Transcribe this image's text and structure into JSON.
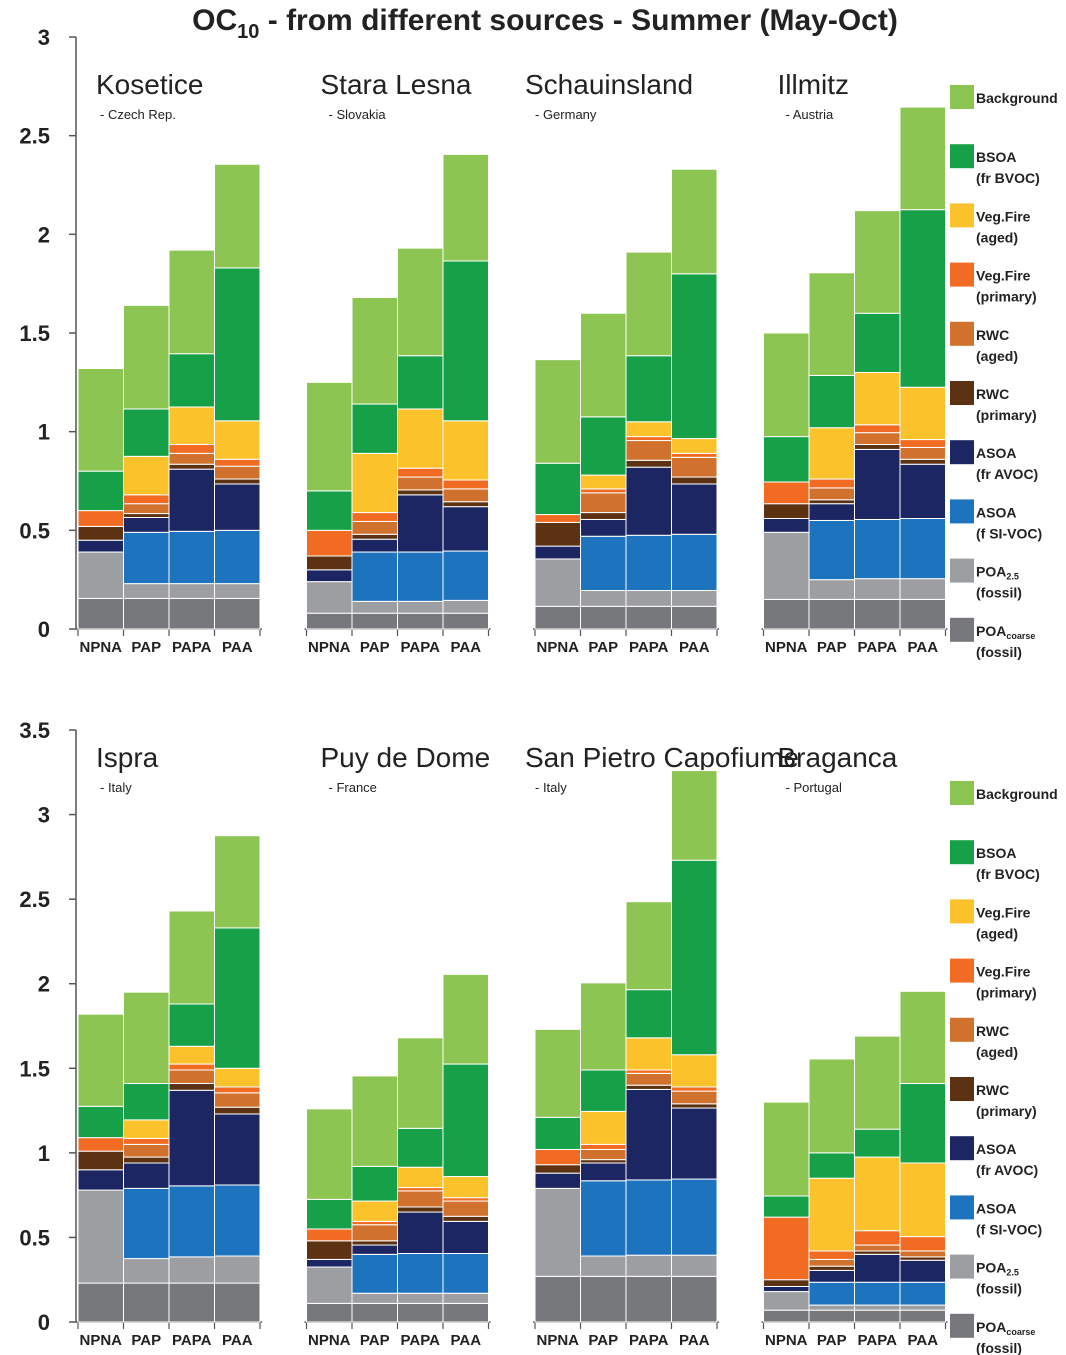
{
  "chart_data": [
    {
      "type": "stacked_bar",
      "title": "OC",
      "title_sub": "10",
      "title_rest": " - from different sources - Summer (May-Oct)",
      "groups": [
        {
          "name": "Kosetice",
          "note": "- Czech Rep."
        },
        {
          "name": "Stara Lesna",
          "note": "- Slovakia"
        },
        {
          "name": "Schauinsland",
          "note": "- Germany"
        },
        {
          "name": "Illmitz",
          "note": "- Austria"
        }
      ],
      "categories": [
        "NPNA",
        "PAP",
        "PAPA",
        "PAA"
      ],
      "ylim": [
        0,
        3
      ],
      "yticks": [
        0,
        0.5,
        1,
        1.5,
        2,
        2.5,
        3
      ],
      "series": [
        {
          "name": "Background",
          "color": "#8cc552",
          "values": [
            [
              0.52,
              0.525,
              0.525,
              0.525
            ],
            [
              0.55,
              0.54,
              0.545,
              0.54
            ],
            [
              0.525,
              0.525,
              0.525,
              0.53
            ],
            [
              0.525,
              0.52,
              0.52,
              0.52
            ]
          ]
        },
        {
          "name": "BSOA",
          "note": "(fr BVOC)",
          "color": "#16a047",
          "values": [
            [
              0.2,
              0.24,
              0.27,
              0.775
            ],
            [
              0.2,
              0.25,
              0.27,
              0.81
            ],
            [
              0.26,
              0.295,
              0.335,
              0.835
            ],
            [
              0.23,
              0.265,
              0.3,
              0.9
            ]
          ]
        },
        {
          "name": "Veg.Fire",
          "note": "(aged)",
          "color": "#fcc22c",
          "values": [
            [
              0,
              0.195,
              0.19,
              0.195
            ],
            [
              0,
              0.3,
              0.3,
              0.3
            ],
            [
              0,
              0.07,
              0.075,
              0.075
            ],
            [
              0,
              0.26,
              0.265,
              0.265
            ]
          ]
        },
        {
          "name": "Veg.Fire",
          "note": "(primary)",
          "color": "#f26b22",
          "values": [
            [
              0.08,
              0.045,
              0.045,
              0.035
            ],
            [
              0.13,
              0.045,
              0.045,
              0.045
            ],
            [
              0.04,
              0.02,
              0.02,
              0.02
            ],
            [
              0.11,
              0.045,
              0.04,
              0.04
            ]
          ]
        },
        {
          "name": "RWC",
          "note": "(aged)",
          "color": "#d0712e",
          "values": [
            [
              0,
              0.05,
              0.055,
              0.065
            ],
            [
              0,
              0.065,
              0.065,
              0.065
            ],
            [
              0,
              0.1,
              0.1,
              0.1
            ],
            [
              0,
              0.06,
              0.06,
              0.06
            ]
          ]
        },
        {
          "name": "RWC",
          "note": "(primary)",
          "color": "#5c3213",
          "values": [
            [
              0.07,
              0.02,
              0.025,
              0.025
            ],
            [
              0.07,
              0.025,
              0.025,
              0.025
            ],
            [
              0.12,
              0.035,
              0.035,
              0.035
            ],
            [
              0.075,
              0.02,
              0.025,
              0.025
            ]
          ]
        },
        {
          "name": "ASOA",
          "note": "(fr AVOC)",
          "color": "#1c2662",
          "values": [
            [
              0.06,
              0.075,
              0.315,
              0.235
            ],
            [
              0.06,
              0.065,
              0.29,
              0.225
            ],
            [
              0.065,
              0.085,
              0.345,
              0.255
            ],
            [
              0.07,
              0.085,
              0.355,
              0.275
            ]
          ]
        },
        {
          "name": "ASOA",
          "note": "(f SI-VOC)",
          "color": "#1e73be",
          "values": [
            [
              0,
              0.26,
              0.265,
              0.27
            ],
            [
              0,
              0.25,
              0.25,
              0.25
            ],
            [
              0,
              0.275,
              0.28,
              0.285
            ],
            [
              0,
              0.3,
              0.3,
              0.305
            ]
          ]
        },
        {
          "name": "POA",
          "sub": "2.5",
          "note": "(fossil)",
          "color": "#9d9ea2",
          "values": [
            [
              0.235,
              0.075,
              0.075,
              0.075
            ],
            [
              0.16,
              0.06,
              0.06,
              0.065
            ],
            [
              0.24,
              0.08,
              0.08,
              0.08
            ],
            [
              0.34,
              0.1,
              0.105,
              0.105
            ]
          ]
        },
        {
          "name": "POA",
          "sub": "coarse",
          "note": "(fossil)",
          "color": "#77787b",
          "values": [
            [
              0.155,
              0.155,
              0.155,
              0.155
            ],
            [
              0.08,
              0.08,
              0.08,
              0.08
            ],
            [
              0.115,
              0.115,
              0.115,
              0.115
            ],
            [
              0.15,
              0.15,
              0.15,
              0.15
            ]
          ]
        }
      ]
    },
    {
      "type": "stacked_bar",
      "groups": [
        {
          "name": "Ispra",
          "note": "- Italy"
        },
        {
          "name": "Puy de Dome",
          "note": "- France"
        },
        {
          "name": "San Pietro Capofiume",
          "note": "- Italy"
        },
        {
          "name": "Braganca",
          "note": "- Portugal"
        }
      ],
      "categories": [
        "NPNA",
        "PAP",
        "PAPA",
        "PAA"
      ],
      "ylim": [
        0,
        3.5
      ],
      "yticks": [
        0,
        0.5,
        1,
        1.5,
        2,
        2.5,
        3,
        3.5
      ],
      "series": [
        {
          "name": "Background",
          "color": "#8cc552",
          "values": [
            [
              0.545,
              0.54,
              0.55,
              0.545
            ],
            [
              0.535,
              0.535,
              0.535,
              0.53
            ],
            [
              0.52,
              0.515,
              0.52,
              0.53
            ],
            [
              0.555,
              0.555,
              0.55,
              0.545
            ]
          ]
        },
        {
          "name": "BSOA",
          "note": "(fr BVOC)",
          "color": "#16a047",
          "values": [
            [
              0.185,
              0.215,
              0.25,
              0.83
            ],
            [
              0.175,
              0.205,
              0.23,
              0.665
            ],
            [
              0.19,
              0.245,
              0.285,
              1.15
            ],
            [
              0.125,
              0.15,
              0.165,
              0.47
            ]
          ]
        },
        {
          "name": "Veg.Fire",
          "note": "(aged)",
          "color": "#fcc22c",
          "values": [
            [
              0,
              0.11,
              0.105,
              0.11
            ],
            [
              0,
              0.12,
              0.12,
              0.125
            ],
            [
              0,
              0.195,
              0.19,
              0.19
            ],
            [
              0,
              0.43,
              0.435,
              0.435
            ]
          ]
        },
        {
          "name": "Veg.Fire",
          "note": "(primary)",
          "color": "#f26b22",
          "values": [
            [
              0.08,
              0.035,
              0.035,
              0.035
            ],
            [
              0.07,
              0.02,
              0.02,
              0.02
            ],
            [
              0.09,
              0.03,
              0.02,
              0.025
            ],
            [
              0.37,
              0.05,
              0.085,
              0.085
            ]
          ]
        },
        {
          "name": "RWC",
          "note": "(aged)",
          "color": "#d0712e",
          "values": [
            [
              0,
              0.075,
              0.08,
              0.085
            ],
            [
              0,
              0.095,
              0.095,
              0.09
            ],
            [
              0,
              0.06,
              0.07,
              0.075
            ],
            [
              0,
              0.04,
              0.035,
              0.035
            ]
          ]
        },
        {
          "name": "RWC",
          "note": "(primary)",
          "color": "#5c3213",
          "values": [
            [
              0.11,
              0.035,
              0.04,
              0.04
            ],
            [
              0.11,
              0.025,
              0.03,
              0.03
            ],
            [
              0.05,
              0.02,
              0.025,
              0.025
            ],
            [
              0.04,
              0.025,
              0.02,
              0.02
            ]
          ]
        },
        {
          "name": "ASOA",
          "note": "(fr AVOC)",
          "color": "#1c2662",
          "values": [
            [
              0.12,
              0.15,
              0.565,
              0.42
            ],
            [
              0.045,
              0.055,
              0.245,
              0.19
            ],
            [
              0.09,
              0.105,
              0.535,
              0.42
            ],
            [
              0.03,
              0.07,
              0.165,
              0.13
            ]
          ]
        },
        {
          "name": "ASOA",
          "note": "(f SI-VOC)",
          "color": "#1e73be",
          "values": [
            [
              0,
              0.415,
              0.42,
              0.42
            ],
            [
              0,
              0.23,
              0.235,
              0.235
            ],
            [
              0,
              0.445,
              0.445,
              0.45
            ],
            [
              0,
              0.135,
              0.135,
              0.135
            ]
          ]
        },
        {
          "name": "POA",
          "sub": "2.5",
          "note": "(fossil)",
          "color": "#9d9ea2",
          "values": [
            [
              0.55,
              0.145,
              0.155,
              0.16
            ],
            [
              0.215,
              0.06,
              0.06,
              0.06
            ],
            [
              0.52,
              0.12,
              0.125,
              0.125
            ],
            [
              0.11,
              0.03,
              0.03,
              0.03
            ]
          ]
        },
        {
          "name": "POA",
          "sub": "coarse",
          "note": "(fossil)",
          "color": "#77787b",
          "values": [
            [
              0.23,
              0.23,
              0.23,
              0.23
            ],
            [
              0.11,
              0.11,
              0.11,
              0.11
            ],
            [
              0.27,
              0.27,
              0.27,
              0.27
            ],
            [
              0.07,
              0.07,
              0.07,
              0.07
            ]
          ]
        }
      ]
    }
  ]
}
